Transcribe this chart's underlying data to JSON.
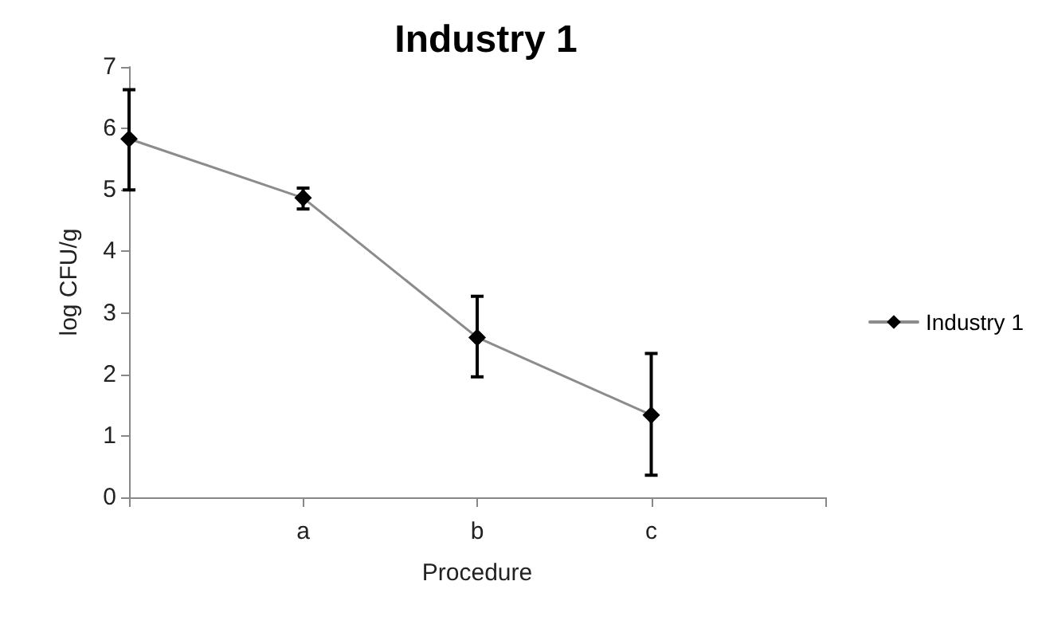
{
  "chart_data": {
    "type": "line",
    "title": "Industry 1",
    "xlabel": "Procedure",
    "ylabel": "log CFU/g",
    "categories": [
      null,
      "a",
      "b",
      "c",
      null
    ],
    "series": [
      {
        "name": "Industry 1",
        "color": "#000000",
        "values": [
          5.83,
          4.87,
          2.6,
          1.34,
          null
        ],
        "errors": [
          [
            5.0,
            6.63
          ],
          [
            4.69,
            5.03
          ],
          [
            1.96,
            3.27
          ],
          [
            0.36,
            2.34
          ],
          null
        ]
      }
    ],
    "ylim": [
      0,
      7
    ],
    "yticks": [
      0,
      1,
      2,
      3,
      4,
      5,
      6,
      7
    ],
    "grid": false,
    "legend": "right",
    "marker": "diamond",
    "line_style": "solid"
  }
}
